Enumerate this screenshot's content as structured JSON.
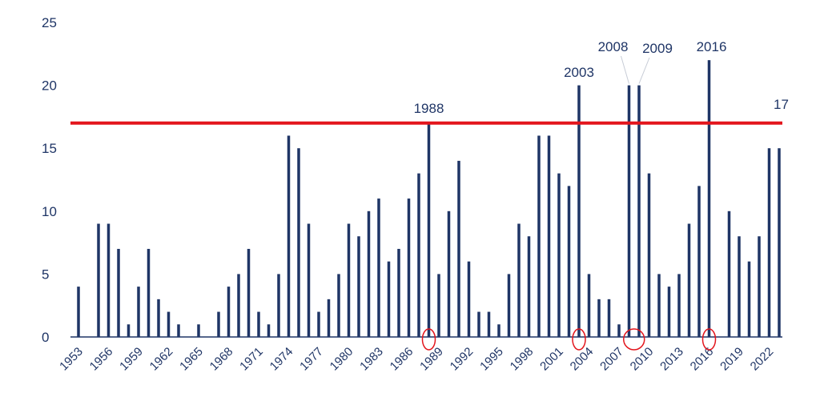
{
  "chart_data": {
    "type": "bar",
    "title": "",
    "xlabel": "",
    "ylabel": "",
    "ylim": [
      0,
      25
    ],
    "y_ticks": [
      "0",
      "5",
      "10",
      "15",
      "20",
      "25"
    ],
    "x_tick_labels": [
      "1953",
      "1956",
      "1959",
      "1962",
      "1965",
      "1968",
      "1971",
      "1974",
      "1977",
      "1980",
      "1983",
      "1986",
      "1989",
      "1992",
      "1995",
      "1998",
      "2001",
      "2004",
      "2007",
      "2010",
      "2013",
      "2016",
      "2019",
      "2022"
    ],
    "categories": [
      "1953",
      "1954",
      "1955",
      "1956",
      "1957",
      "1958",
      "1959",
      "1960",
      "1961",
      "1962",
      "1963",
      "1964",
      "1965",
      "1966",
      "1967",
      "1968",
      "1969",
      "1970",
      "1971",
      "1972",
      "1973",
      "1974",
      "1975",
      "1976",
      "1977",
      "1978",
      "1979",
      "1980",
      "1981",
      "1982",
      "1983",
      "1984",
      "1985",
      "1986",
      "1987",
      "1988",
      "1989",
      "1990",
      "1991",
      "1992",
      "1993",
      "1994",
      "1995",
      "1996",
      "1997",
      "1998",
      "1999",
      "2000",
      "2001",
      "2002",
      "2003",
      "2004",
      "2005",
      "2006",
      "2007",
      "2008",
      "2009",
      "2010",
      "2011",
      "2012",
      "2013",
      "2014",
      "2015",
      "2016",
      "2017",
      "2018",
      "2019",
      "2020",
      "2021",
      "2022",
      "2023"
    ],
    "values": [
      4,
      0,
      9,
      9,
      7,
      1,
      4,
      7,
      3,
      2,
      1,
      0,
      1,
      0,
      2,
      4,
      5,
      7,
      2,
      1,
      5,
      16,
      15,
      9,
      2,
      3,
      5,
      9,
      8,
      10,
      11,
      6,
      7,
      11,
      13,
      17,
      5,
      10,
      14,
      6,
      2,
      2,
      1,
      5,
      9,
      8,
      16,
      16,
      13,
      12,
      20,
      5,
      3,
      3,
      1,
      20,
      20,
      13,
      5,
      4,
      5,
      9,
      12,
      22,
      0,
      10,
      8,
      6,
      8,
      15,
      15
    ],
    "reference_line": {
      "value": 17,
      "label": "17",
      "color": "#e3151c"
    },
    "bar_color": "#1f3566",
    "annotations": [
      {
        "label": "1988",
        "category": "1988"
      },
      {
        "label": "2003",
        "category": "2003"
      },
      {
        "label": "2008",
        "category": "2008"
      },
      {
        "label": "2009",
        "category": "2009"
      },
      {
        "label": "2016",
        "category": "2016"
      }
    ],
    "highlight_circles": [
      "1988",
      "2003",
      "2008-2009",
      "2016"
    ],
    "grid": false,
    "legend": "none"
  }
}
